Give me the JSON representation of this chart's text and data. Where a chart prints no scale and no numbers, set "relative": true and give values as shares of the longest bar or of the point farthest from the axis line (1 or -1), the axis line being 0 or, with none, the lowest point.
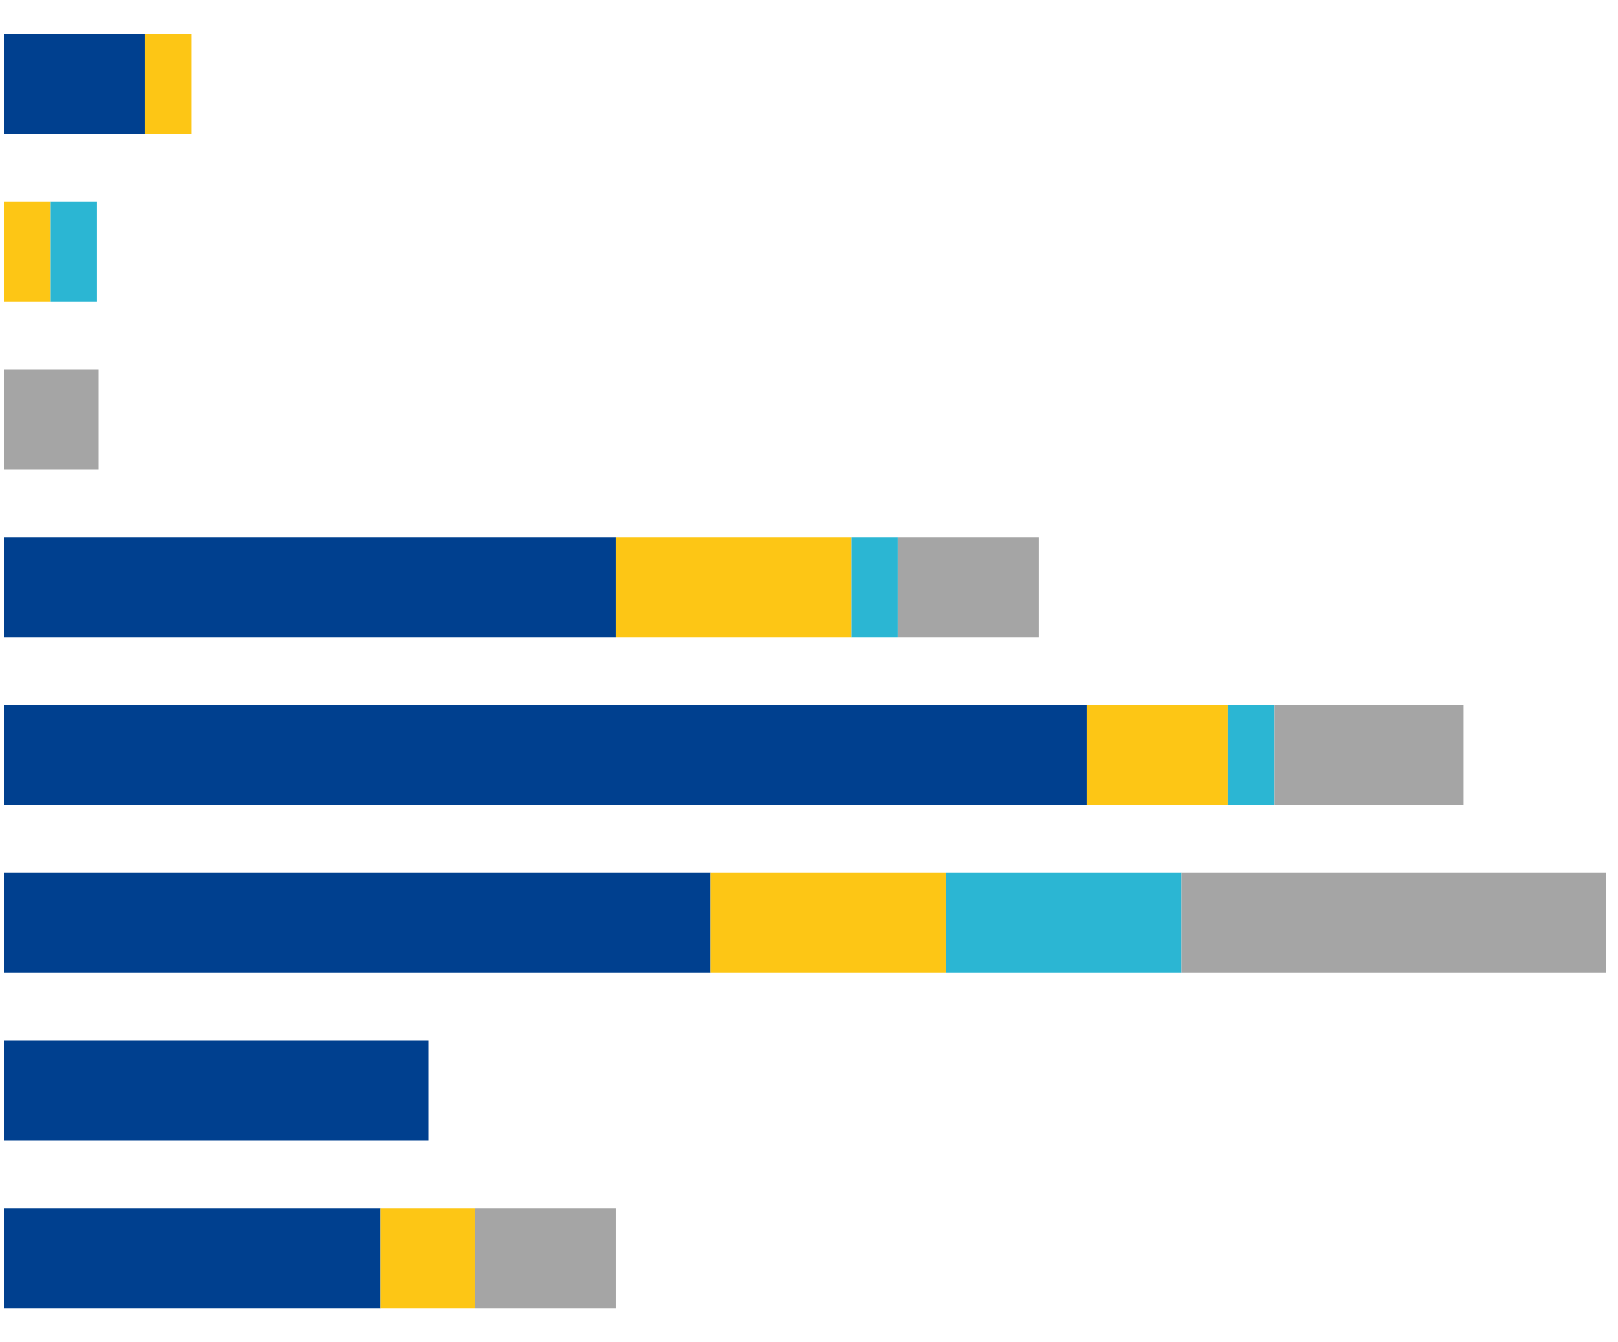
{
  "chart_data": {
    "type": "bar",
    "orientation": "horizontal",
    "stacked": true,
    "relative": true,
    "categories": [
      null,
      null,
      null,
      null,
      null,
      null,
      null,
      null
    ],
    "series": [
      {
        "color": "#00408f",
        "values": [
          0.088,
          null,
          null,
          0.382,
          0.676,
          0.441,
          0.265,
          0.235
        ]
      },
      {
        "color": "#fdc615",
        "values": [
          0.029,
          0.029,
          null,
          0.147,
          0.088,
          0.147,
          null,
          0.059
        ]
      },
      {
        "color": "#2bb6d3",
        "values": [
          null,
          0.029,
          null,
          0.029,
          0.029,
          0.147,
          null,
          null
        ]
      },
      {
        "color": "#a5a5a5",
        "values": [
          null,
          null,
          0.059,
          0.088,
          0.118,
          0.265,
          null,
          0.088
        ]
      }
    ]
  }
}
